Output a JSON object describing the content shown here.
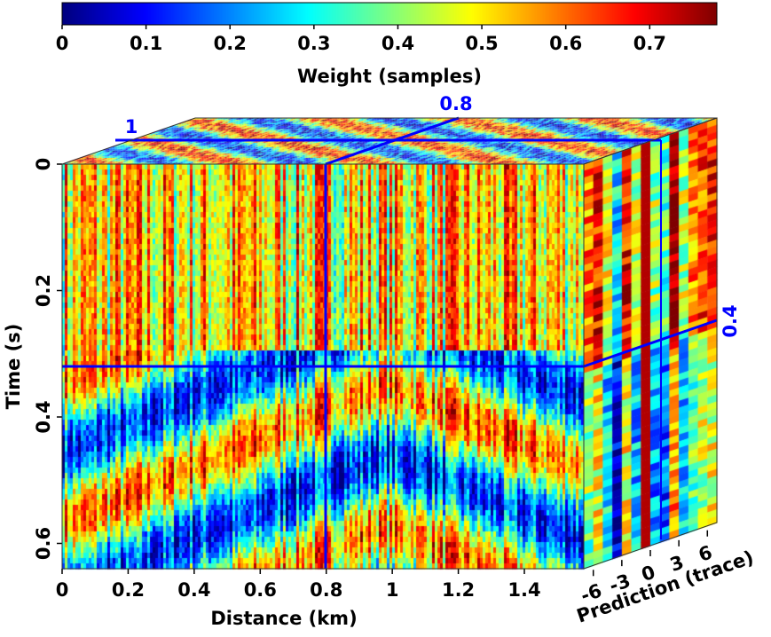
{
  "chart_data": {
    "type": "heatmap",
    "subtype": "3d-cube-slices",
    "colorbar": {
      "label": "Weight (samples)",
      "ticks": [
        "0",
        "0.1",
        "0.2",
        "0.3",
        "0.4",
        "0.5",
        "0.6",
        "0.7"
      ],
      "range": [
        0,
        0.78
      ],
      "colormap": "jet"
    },
    "axes": {
      "x": {
        "label": "Distance (km)",
        "ticks": [
          "0",
          "0.2",
          "0.4",
          "0.6",
          "0.8",
          "1",
          "1.2",
          "1.4"
        ],
        "range": [
          0,
          1.58
        ]
      },
      "y": {
        "label": "Time (s)",
        "ticks": [
          "0",
          "0.2",
          "0.4",
          "0.6"
        ],
        "range": [
          0,
          0.8
        ]
      },
      "z": {
        "label": "Prediction (trace)",
        "ticks": [
          "-6",
          "-3",
          "0",
          "3",
          "6"
        ],
        "range": [
          -7,
          7
        ]
      }
    },
    "slices": {
      "distance": "0.8",
      "time": "0.4",
      "top_labels": [
        "1",
        "0.8"
      ],
      "right_label": "0.4"
    }
  }
}
